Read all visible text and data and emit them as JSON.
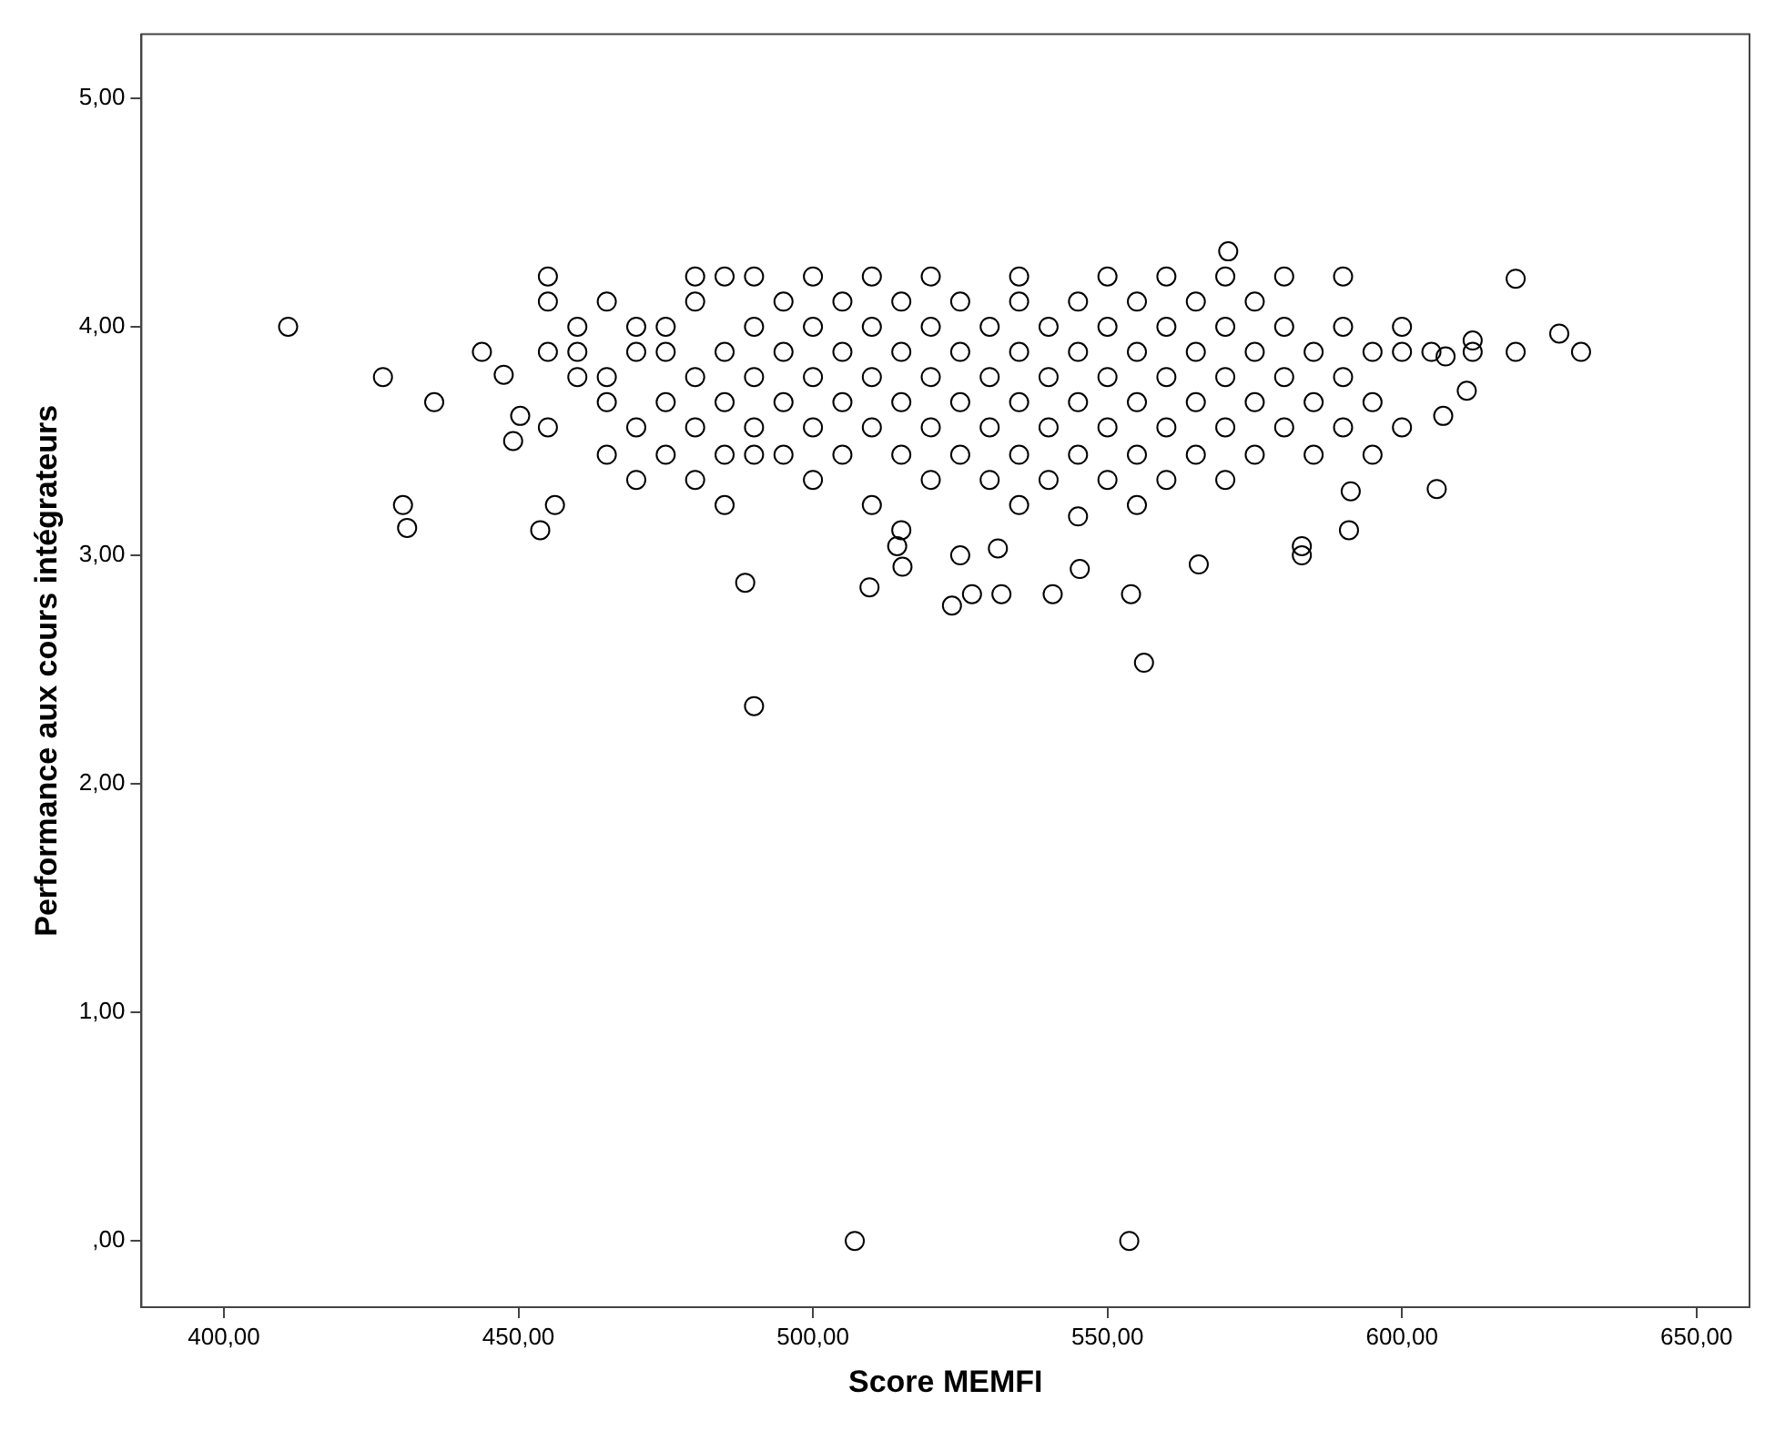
{
  "chart_data": {
    "type": "scatter",
    "xlabel": "Score MEMFI",
    "ylabel": "Performance aux cours intégrateurs",
    "marker": "circle",
    "grid": false,
    "legend": false,
    "xlim": [
      386,
      659
    ],
    "ylim": [
      -0.29,
      5.28
    ],
    "xticks": [
      {
        "value": 400,
        "label": "400,00"
      },
      {
        "value": 450,
        "label": "450,00"
      },
      {
        "value": 500,
        "label": "500,00"
      },
      {
        "value": 550,
        "label": "550,00"
      },
      {
        "value": 600,
        "label": "600,00"
      },
      {
        "value": 650,
        "label": "650,00"
      }
    ],
    "yticks": [
      {
        "value": 0,
        "label": ",00"
      },
      {
        "value": 1,
        "label": "1,00"
      },
      {
        "value": 2,
        "label": "2,00"
      },
      {
        "value": 3,
        "label": "3,00"
      },
      {
        "value": 4,
        "label": "4,00"
      },
      {
        "value": 5,
        "label": "5,00"
      }
    ],
    "series": [
      {
        "color": "#000000",
        "x": [
          410.9,
          427,
          430.4,
          431.1,
          435.7,
          443.8,
          447.5,
          449.1,
          450.3,
          453.7,
          456.2,
          488.5,
          490,
          507.1,
          553.7,
          556.2,
          523.6,
          527,
          532,
          554,
          565.5,
          605.9,
          591.3,
          583,
          583,
          591,
          619.3,
          626.7,
          630.4,
          619.3,
          570.5,
          607,
          611,
          607.4,
          540.7,
          545.3,
          515.2,
          514.3,
          531.4,
          509.6,
          455,
          455,
          455,
          455,
          460,
          460,
          460,
          465,
          465,
          465,
          465,
          470,
          470,
          470,
          470,
          475,
          475,
          475,
          475,
          480,
          480,
          480,
          480,
          480,
          485,
          485,
          485,
          485,
          485,
          490,
          490,
          490,
          490,
          490,
          495,
          495,
          495,
          495,
          500,
          500,
          500,
          500,
          500,
          505,
          505,
          505,
          505,
          510,
          510,
          510,
          510,
          510,
          515,
          515,
          515,
          515,
          515,
          520,
          520,
          520,
          520,
          520,
          525,
          525,
          525,
          525,
          525,
          530,
          530,
          530,
          530,
          535,
          535,
          535,
          535,
          535,
          535,
          540,
          540,
          540,
          540,
          545,
          545,
          545,
          545,
          545,
          550,
          550,
          550,
          550,
          550,
          555,
          555,
          555,
          555,
          555,
          560,
          560,
          560,
          560,
          560,
          565,
          565,
          565,
          565,
          570,
          570,
          570,
          570,
          570,
          575,
          575,
          575,
          575,
          580,
          580,
          580,
          580,
          585,
          585,
          585,
          590,
          590,
          590,
          590,
          595,
          595,
          595,
          600,
          600,
          600,
          605,
          612,
          612
        ],
        "values": [
          4.0,
          3.78,
          3.22,
          3.12,
          3.67,
          3.89,
          3.79,
          3.5,
          3.61,
          3.11,
          3.22,
          2.88,
          2.34,
          0,
          0,
          2.53,
          2.78,
          2.83,
          2.83,
          2.83,
          2.96,
          3.29,
          3.28,
          3.04,
          3.0,
          3.11,
          3.89,
          3.97,
          3.89,
          4.21,
          4.33,
          3.61,
          3.72,
          3.87,
          2.83,
          2.94,
          2.95,
          3.04,
          3.03,
          2.86,
          4.22,
          4.11,
          3.89,
          3.56,
          4.0,
          3.78,
          3.89,
          4.11,
          3.67,
          3.44,
          3.78,
          3.89,
          3.56,
          3.33,
          4.0,
          4.0,
          3.67,
          3.89,
          3.44,
          4.22,
          4.11,
          3.78,
          3.56,
          3.33,
          4.22,
          3.89,
          3.67,
          3.22,
          3.44,
          4.22,
          4.0,
          3.78,
          3.44,
          3.56,
          4.11,
          3.89,
          3.67,
          3.44,
          4.22,
          4.0,
          3.78,
          3.56,
          3.33,
          4.11,
          3.89,
          3.67,
          3.44,
          4.22,
          4.0,
          3.78,
          3.56,
          3.22,
          4.11,
          3.89,
          3.67,
          3.44,
          3.11,
          4.22,
          4.0,
          3.78,
          3.56,
          3.33,
          4.11,
          3.89,
          3.67,
          3.44,
          3.0,
          4.0,
          3.78,
          3.56,
          3.33,
          4.22,
          4.11,
          3.89,
          3.67,
          3.44,
          3.22,
          4.0,
          3.78,
          3.56,
          3.33,
          4.11,
          3.89,
          3.67,
          3.44,
          3.17,
          4.22,
          4.0,
          3.78,
          3.56,
          3.33,
          4.11,
          3.89,
          3.67,
          3.44,
          3.22,
          4.22,
          4.0,
          3.78,
          3.56,
          3.33,
          4.11,
          3.89,
          3.67,
          3.44,
          4.22,
          4.0,
          3.78,
          3.56,
          3.33,
          4.11,
          3.89,
          3.67,
          3.44,
          4.22,
          4.0,
          3.78,
          3.56,
          3.89,
          3.67,
          3.44,
          4.22,
          4.0,
          3.78,
          3.56,
          3.89,
          3.67,
          3.44,
          4.0,
          3.89,
          3.56,
          3.89,
          3.89,
          3.94
        ]
      }
    ]
  }
}
